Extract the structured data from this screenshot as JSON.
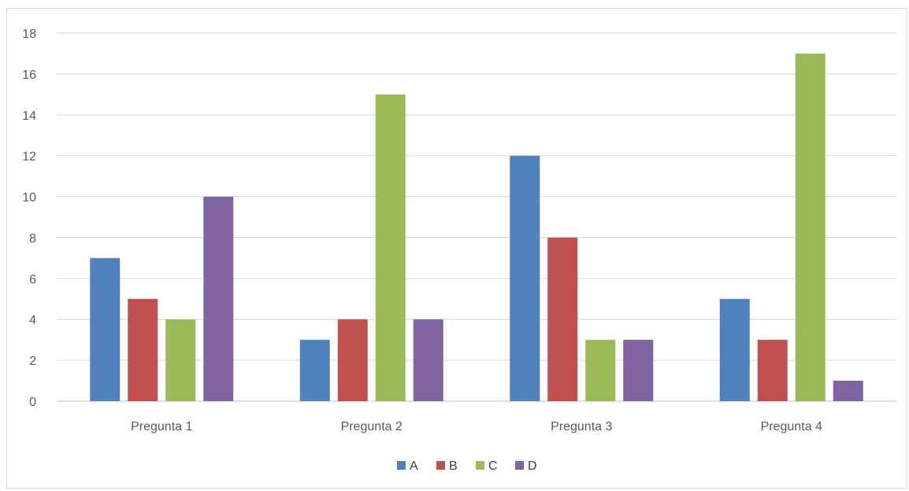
{
  "chart_data": {
    "type": "bar",
    "title": "",
    "xlabel": "",
    "ylabel": "",
    "categories": [
      "Pregunta 1",
      "Pregunta 2",
      "Pregunta 3",
      "Pregunta 4"
    ],
    "series": [
      {
        "name": "A",
        "color": "#4f81bd",
        "values": [
          7,
          3,
          12,
          5
        ]
      },
      {
        "name": "B",
        "color": "#c0504d",
        "values": [
          5,
          4,
          8,
          3
        ]
      },
      {
        "name": "C",
        "color": "#9bbb59",
        "values": [
          4,
          15,
          3,
          17
        ]
      },
      {
        "name": "D",
        "color": "#8064a2",
        "values": [
          10,
          4,
          3,
          1
        ]
      }
    ],
    "ylim": [
      0,
      18
    ],
    "yticks": [
      0,
      2,
      4,
      6,
      8,
      10,
      12,
      14,
      16,
      18
    ],
    "grid": true,
    "legend_position": "bottom"
  }
}
